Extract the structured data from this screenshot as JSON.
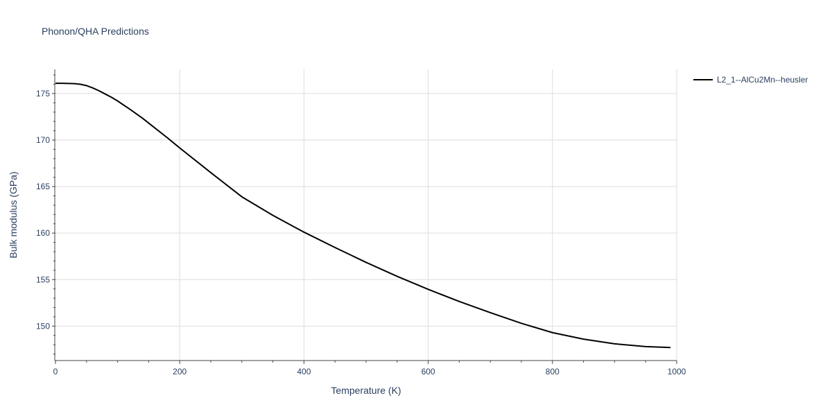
{
  "chart_data": {
    "type": "line",
    "title": "Phonon/QHA Predictions",
    "xlabel": "Temperature (K)",
    "ylabel": "Bulk modulus (GPa)",
    "xlim": [
      0,
      1000
    ],
    "ylim": [
      146.3,
      177.6
    ],
    "xticks": [
      0,
      200,
      400,
      600,
      800,
      1000
    ],
    "yticks": [
      150,
      155,
      160,
      165,
      170,
      175
    ],
    "grid": true,
    "legend_position": "top-right",
    "series": [
      {
        "name": "L2_1--AlCu2Mn--heusler",
        "color": "#000000",
        "x": [
          0,
          10,
          20,
          30,
          40,
          50,
          60,
          70,
          80,
          90,
          100,
          120,
          140,
          160,
          180,
          200,
          250,
          300,
          350,
          400,
          450,
          500,
          550,
          600,
          650,
          700,
          750,
          800,
          850,
          900,
          950,
          990
        ],
        "y": [
          176.1,
          176.1,
          176.08,
          176.06,
          176.0,
          175.85,
          175.6,
          175.3,
          174.95,
          174.6,
          174.2,
          173.3,
          172.35,
          171.3,
          170.25,
          169.15,
          166.5,
          163.9,
          161.9,
          160.1,
          158.45,
          156.85,
          155.35,
          153.95,
          152.65,
          151.45,
          150.3,
          149.3,
          148.6,
          148.1,
          147.8,
          147.7
        ]
      }
    ]
  }
}
